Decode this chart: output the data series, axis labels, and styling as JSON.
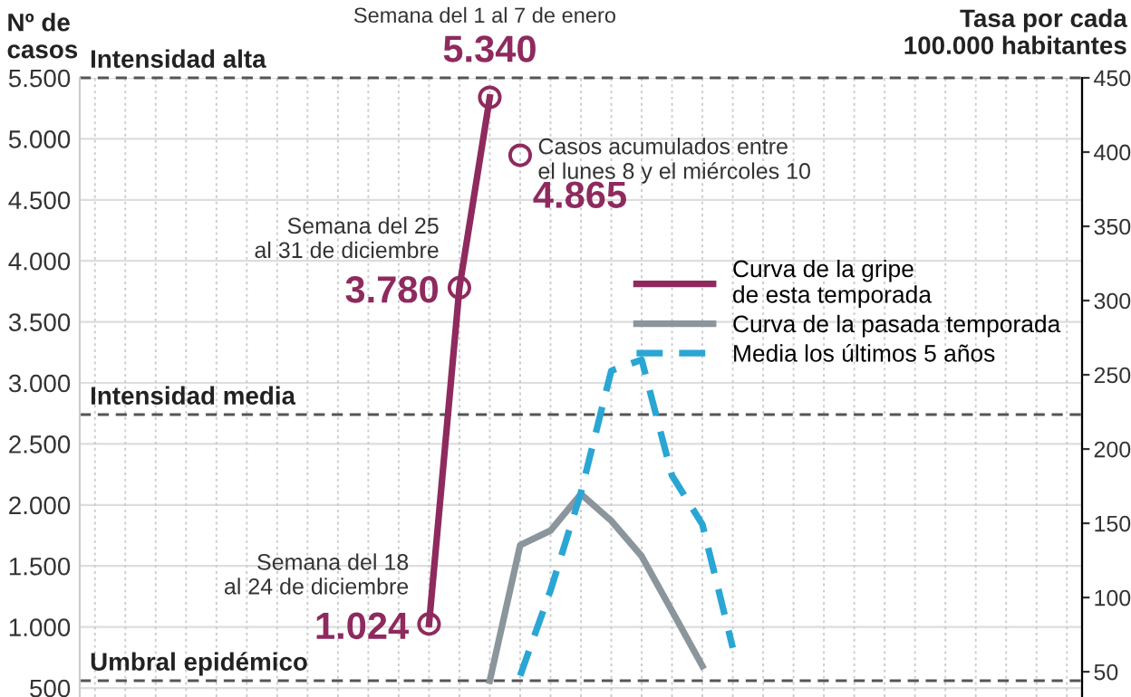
{
  "chart_data": {
    "type": "line",
    "ylabel": "Nº de\ncasos",
    "y2label": "Tasa por cada\n100.000 habitantes",
    "categories": [
      null,
      null,
      null,
      null,
      null,
      null,
      null,
      null,
      null,
      null,
      null,
      null,
      null,
      null,
      null,
      null,
      null,
      null,
      null,
      null,
      null,
      null,
      null,
      null,
      null,
      null,
      null,
      null,
      null,
      null,
      null,
      null,
      null
    ],
    "series": [
      {
        "name": "Curva de la gripe\nde esta temporada",
        "color": "#8e2a5e",
        "marker": "circle",
        "values": [
          null,
          null,
          null,
          null,
          null,
          null,
          null,
          null,
          null,
          null,
          null,
          1024,
          3780,
          5340,
          null,
          null,
          null,
          null,
          null,
          null,
          null,
          null,
          null,
          null,
          null,
          null,
          null,
          null,
          null,
          null,
          null,
          null,
          null
        ],
        "value_labels": [
          null,
          null,
          null,
          null,
          null,
          null,
          null,
          null,
          null,
          null,
          null,
          "1.024",
          "3.780",
          "5.340",
          null,
          null,
          null,
          null,
          null,
          null,
          null,
          null,
          null,
          null,
          null,
          null,
          null,
          null,
          null,
          null,
          null,
          null,
          null
        ]
      },
      {
        "name": "Curva de la pasada temporada",
        "color": "#8a959c",
        "values": [
          null,
          null,
          null,
          null,
          null,
          null,
          null,
          null,
          null,
          null,
          null,
          null,
          null,
          560,
          1670,
          1790,
          2090,
          1870,
          1580,
          1130,
          680,
          null,
          null,
          null,
          null,
          null,
          null,
          null,
          null,
          null,
          null,
          null,
          null
        ]
      },
      {
        "name": "Media los últimos 5 años",
        "color": "#2aa6d4",
        "line_style": "dashed",
        "values": [
          null,
          null,
          null,
          null,
          null,
          null,
          null,
          null,
          null,
          null,
          null,
          null,
          null,
          null,
          600,
          1300,
          2100,
          3100,
          3190,
          2240,
          1840,
          830,
          null,
          null,
          null,
          null,
          null,
          null,
          null,
          null,
          null,
          null,
          null
        ]
      },
      {
        "type": "scatter",
        "color": "#8e2a5e",
        "marker": "circle",
        "values": [
          null,
          null,
          null,
          null,
          null,
          null,
          null,
          null,
          null,
          null,
          null,
          null,
          null,
          null,
          4865,
          null,
          null,
          null,
          null,
          null,
          null,
          null,
          null,
          null,
          null,
          null,
          null,
          null,
          null,
          null,
          null,
          null,
          null
        ],
        "value_labels": [
          null,
          null,
          null,
          null,
          null,
          null,
          null,
          null,
          null,
          null,
          null,
          null,
          null,
          null,
          "4.865",
          null,
          null,
          null,
          null,
          null,
          null,
          null,
          null,
          null,
          null,
          null,
          null,
          null,
          null,
          null,
          null,
          null,
          null
        ]
      }
    ],
    "annotations": [
      "Semana del 18\nal 24 de diciembre",
      "Semana del 25\nal 31 de diciembre",
      "Semana del 1 al 7 de enero",
      "Casos acumulados entre\nel lunes 8 y el miércoles 10"
    ],
    "ref_lines": [
      {
        "axis": "y",
        "value": 5500,
        "label": "Intensidad alta",
        "line_style": "dashed",
        "color": "#555555"
      },
      {
        "axis": "y",
        "value": 2740,
        "label": "Intensidad media",
        "line_style": "dashed",
        "color": "#555555"
      },
      {
        "axis": "y",
        "value": 560,
        "label": "Umbral epidémico",
        "line_style": "dashed",
        "color": "#555555"
      }
    ],
    "ylim": [
      426,
      5500
    ],
    "yticks": [
      500,
      {
        "value": 1000,
        "label": "1.000"
      },
      {
        "value": 1500,
        "label": "1.500"
      },
      {
        "value": 2000,
        "label": "2.000"
      },
      {
        "value": 2500,
        "label": "2.500"
      },
      {
        "value": 3000,
        "label": "3.000"
      },
      {
        "value": 3500,
        "label": "3.500"
      },
      {
        "value": 4000,
        "label": "4.000"
      },
      {
        "value": 4500,
        "label": "4.500"
      },
      {
        "value": 5000,
        "label": "5.000"
      },
      {
        "value": 5500,
        "label": "5.500"
      }
    ],
    "y2lim": [
      33,
      450
    ],
    "y2ticks": [
      50,
      100,
      150,
      200,
      250,
      300,
      350,
      400,
      450
    ],
    "tick_labels": "y",
    "grid": true,
    "legend": "right"
  }
}
